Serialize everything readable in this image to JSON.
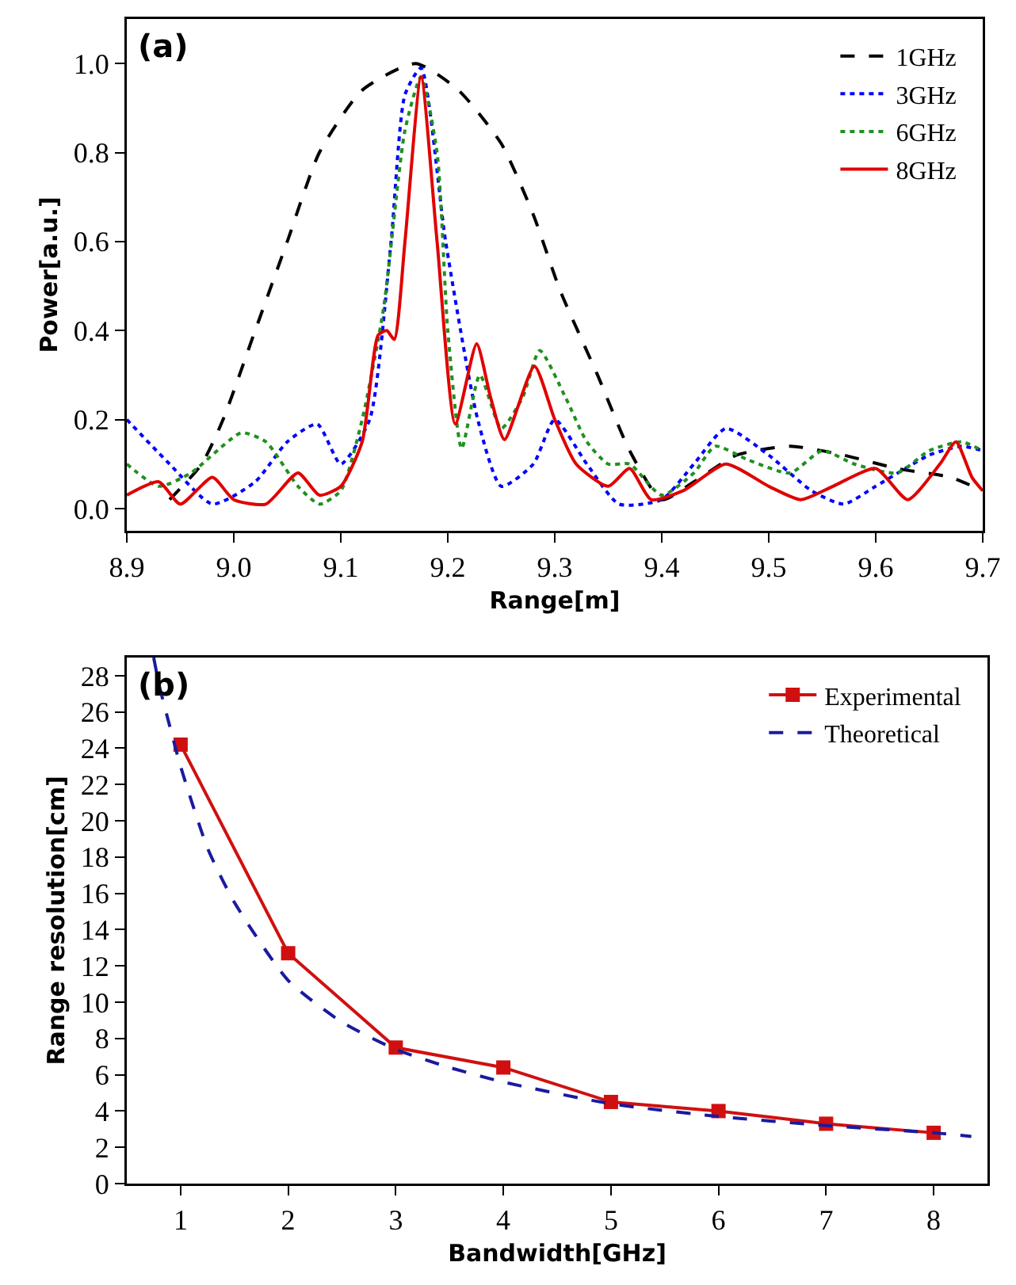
{
  "chart_data": [
    {
      "type": "line",
      "xlabel": "Range[m]",
      "ylabel": "Power[a.u.]",
      "annotations": [
        "(a)"
      ],
      "xlim": [
        8.9,
        9.7
      ],
      "xticks": [
        8.9,
        {
          "value": 9,
          "label": "9.0"
        },
        9.1,
        9.2,
        9.3,
        9.4,
        9.5,
        9.6,
        9.7
      ],
      "ylim": [
        -0.05,
        1.1
      ],
      "yticks": [
        {
          "value": 0,
          "label": "0.0"
        },
        0.2,
        0.4,
        0.6,
        0.8,
        {
          "value": 1,
          "label": "1.0"
        }
      ],
      "grid": false,
      "legend": "top right",
      "marker": "none",
      "series": [
        {
          "name": "1GHz",
          "color": "#000000",
          "line_style": "dashed",
          "x": [
            8.94,
            8.97,
            8.99,
            9.02,
            9.05,
            9.08,
            9.12,
            9.17,
            9.21,
            9.25,
            9.28,
            9.305,
            9.34,
            9.37,
            9.4,
            9.43,
            9.47,
            9.52,
            9.57,
            9.62,
            9.67,
            9.7
          ],
          "values": [
            0.02,
            0.1,
            0.2,
            0.4,
            0.6,
            0.8,
            0.94,
            1.0,
            0.94,
            0.82,
            0.66,
            0.49,
            0.3,
            0.13,
            0.02,
            0.06,
            0.12,
            0.14,
            0.12,
            0.09,
            0.07,
            0.04
          ]
        },
        {
          "name": "3GHz",
          "color": "#0000ff",
          "line_style": "dotted",
          "x": [
            8.9,
            8.94,
            8.98,
            9.02,
            9.05,
            9.078,
            9.1,
            9.127,
            9.147,
            9.16,
            9.175,
            9.198,
            9.228,
            9.25,
            9.28,
            9.3,
            9.33,
            9.36,
            9.4,
            9.43,
            9.46,
            9.5,
            9.54,
            9.57,
            9.6,
            9.65,
            9.68,
            9.7
          ],
          "values": [
            0.2,
            0.1,
            0.01,
            0.06,
            0.15,
            0.19,
            0.1,
            0.2,
            0.6,
            0.93,
            0.99,
            0.6,
            0.2,
            0.05,
            0.1,
            0.2,
            0.1,
            0.01,
            0.02,
            0.1,
            0.18,
            0.12,
            0.04,
            0.01,
            0.05,
            0.12,
            0.14,
            0.13
          ]
        },
        {
          "name": "6GHz",
          "color": "#209020",
          "line_style": "dotted",
          "x": [
            8.9,
            8.93,
            8.96,
            9.007,
            9.03,
            9.06,
            9.08,
            9.1,
            9.12,
            9.14,
            9.16,
            9.175,
            9.19,
            9.2,
            9.213,
            9.23,
            9.25,
            9.27,
            9.286,
            9.31,
            9.33,
            9.35,
            9.37,
            9.4,
            9.43,
            9.45,
            9.48,
            9.52,
            9.55,
            9.58,
            9.62,
            9.65,
            9.68,
            9.7
          ],
          "values": [
            0.1,
            0.05,
            0.08,
            0.17,
            0.15,
            0.05,
            0.01,
            0.04,
            0.2,
            0.45,
            0.85,
            0.97,
            0.8,
            0.4,
            0.135,
            0.3,
            0.18,
            0.25,
            0.355,
            0.25,
            0.15,
            0.1,
            0.1,
            0.03,
            0.08,
            0.14,
            0.11,
            0.08,
            0.13,
            0.1,
            0.08,
            0.13,
            0.15,
            0.13
          ]
        },
        {
          "name": "8GHz",
          "color": "#e00000",
          "line_style": "solid",
          "x": [
            8.9,
            8.93,
            8.95,
            8.98,
            9.0,
            9.03,
            9.06,
            9.08,
            9.1,
            9.12,
            9.135,
            9.143,
            9.15,
            9.16,
            9.175,
            9.19,
            9.207,
            9.227,
            9.24,
            9.253,
            9.281,
            9.3,
            9.32,
            9.35,
            9.37,
            9.39,
            9.42,
            9.46,
            9.5,
            9.53,
            9.56,
            9.6,
            9.63,
            9.66,
            9.675,
            9.69,
            9.7
          ],
          "values": [
            0.03,
            0.06,
            0.01,
            0.07,
            0.02,
            0.01,
            0.08,
            0.03,
            0.05,
            0.15,
            0.39,
            0.4,
            0.38,
            0.6,
            0.97,
            0.6,
            0.19,
            0.37,
            0.25,
            0.155,
            0.32,
            0.2,
            0.1,
            0.05,
            0.09,
            0.02,
            0.04,
            0.1,
            0.05,
            0.02,
            0.05,
            0.09,
            0.02,
            0.1,
            0.15,
            0.07,
            0.04
          ]
        }
      ]
    },
    {
      "type": "line",
      "xlabel": "Bandwidth[GHz]",
      "ylabel": "Range resolution[cm]",
      "annotations": [
        "(b)"
      ],
      "xlim": [
        0.5,
        8.5
      ],
      "xticks": [
        1,
        2,
        3,
        4,
        5,
        6,
        7,
        8
      ],
      "ylim": [
        0,
        29
      ],
      "yticks": [
        0,
        2,
        4,
        6,
        8,
        10,
        12,
        14,
        16,
        18,
        20,
        22,
        24,
        26,
        28
      ],
      "grid": false,
      "legend": "top right",
      "series": [
        {
          "name": "Experimental",
          "color": "#d01010",
          "line_style": "solid",
          "marker": "square",
          "x": [
            1,
            2,
            3,
            4,
            5,
            6,
            7,
            8
          ],
          "values": [
            24.2,
            12.7,
            7.5,
            6.4,
            4.5,
            4.0,
            3.3,
            2.8
          ]
        },
        {
          "name": "Theoretical",
          "color": "#1a1aa0",
          "line_style": "dashed",
          "marker": "none",
          "x": [
            0.75,
            0.8,
            0.9,
            1,
            1.25,
            1.5,
            2,
            2.5,
            3,
            3.5,
            4,
            5,
            6,
            7,
            8,
            8.35
          ],
          "values": [
            29,
            27.5,
            25.2,
            23,
            18.5,
            15.5,
            11.2,
            8.9,
            7.4,
            6.4,
            5.6,
            4.4,
            3.7,
            3.2,
            2.8,
            2.6
          ]
        }
      ]
    }
  ]
}
